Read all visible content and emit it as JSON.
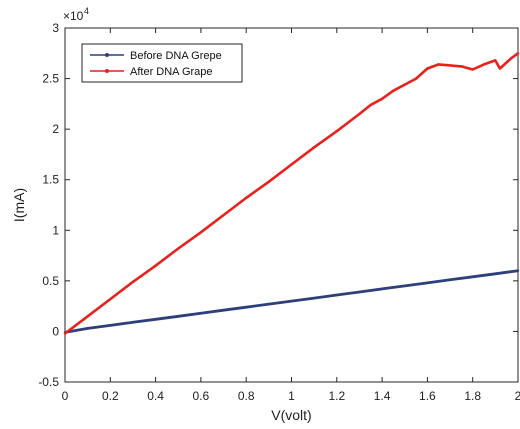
{
  "chart_data": {
    "type": "line",
    "title": "",
    "xlabel": "V(volt)",
    "ylabel": "I(mA)",
    "xlim": [
      0,
      2
    ],
    "ylim": [
      -0.5,
      3
    ],
    "y_multiplier": "×10",
    "y_multiplier_exp": "4",
    "x_ticks": [
      "0",
      "0.2",
      "0.4",
      "0.6",
      "0.8",
      "1",
      "1.2",
      "1.4",
      "1.6",
      "1.8",
      "2"
    ],
    "y_ticks": [
      "-0.5",
      "0",
      "0.5",
      "1",
      "1.5",
      "2",
      "2.5",
      "3"
    ],
    "x_tick_values": [
      0,
      0.2,
      0.4,
      0.6,
      0.8,
      1.0,
      1.2,
      1.4,
      1.6,
      1.8,
      2.0
    ],
    "y_tick_values": [
      -0.5,
      0,
      0.5,
      1,
      1.5,
      2,
      2.5,
      3
    ],
    "legend_position": "top-left",
    "grid": false,
    "series": [
      {
        "name": "Before DNA Grepe",
        "color": "#2e3f7c",
        "x": [
          0,
          0.1,
          0.2,
          0.3,
          0.4,
          0.5,
          0.6,
          0.7,
          0.8,
          0.9,
          1.0,
          1.1,
          1.2,
          1.3,
          1.4,
          1.5,
          1.6,
          1.7,
          1.8,
          1.9,
          2.0
        ],
        "y": [
          -0.01,
          0.03,
          0.06,
          0.09,
          0.12,
          0.15,
          0.18,
          0.21,
          0.24,
          0.27,
          0.3,
          0.33,
          0.36,
          0.39,
          0.42,
          0.45,
          0.48,
          0.51,
          0.54,
          0.57,
          0.6
        ]
      },
      {
        "name": "After DNA Grape",
        "color": "#e8211c",
        "x": [
          0,
          0.1,
          0.2,
          0.3,
          0.4,
          0.5,
          0.6,
          0.7,
          0.8,
          0.9,
          1.0,
          1.1,
          1.2,
          1.3,
          1.35,
          1.4,
          1.45,
          1.5,
          1.55,
          1.6,
          1.65,
          1.7,
          1.75,
          1.8,
          1.85,
          1.9,
          1.92,
          1.95,
          1.97,
          2.0
        ],
        "y": [
          -0.02,
          0.15,
          0.32,
          0.49,
          0.65,
          0.82,
          0.98,
          1.15,
          1.32,
          1.48,
          1.65,
          1.82,
          1.98,
          2.15,
          2.24,
          2.3,
          2.38,
          2.44,
          2.5,
          2.6,
          2.64,
          2.63,
          2.62,
          2.59,
          2.64,
          2.68,
          2.6,
          2.66,
          2.7,
          2.75
        ]
      }
    ]
  }
}
